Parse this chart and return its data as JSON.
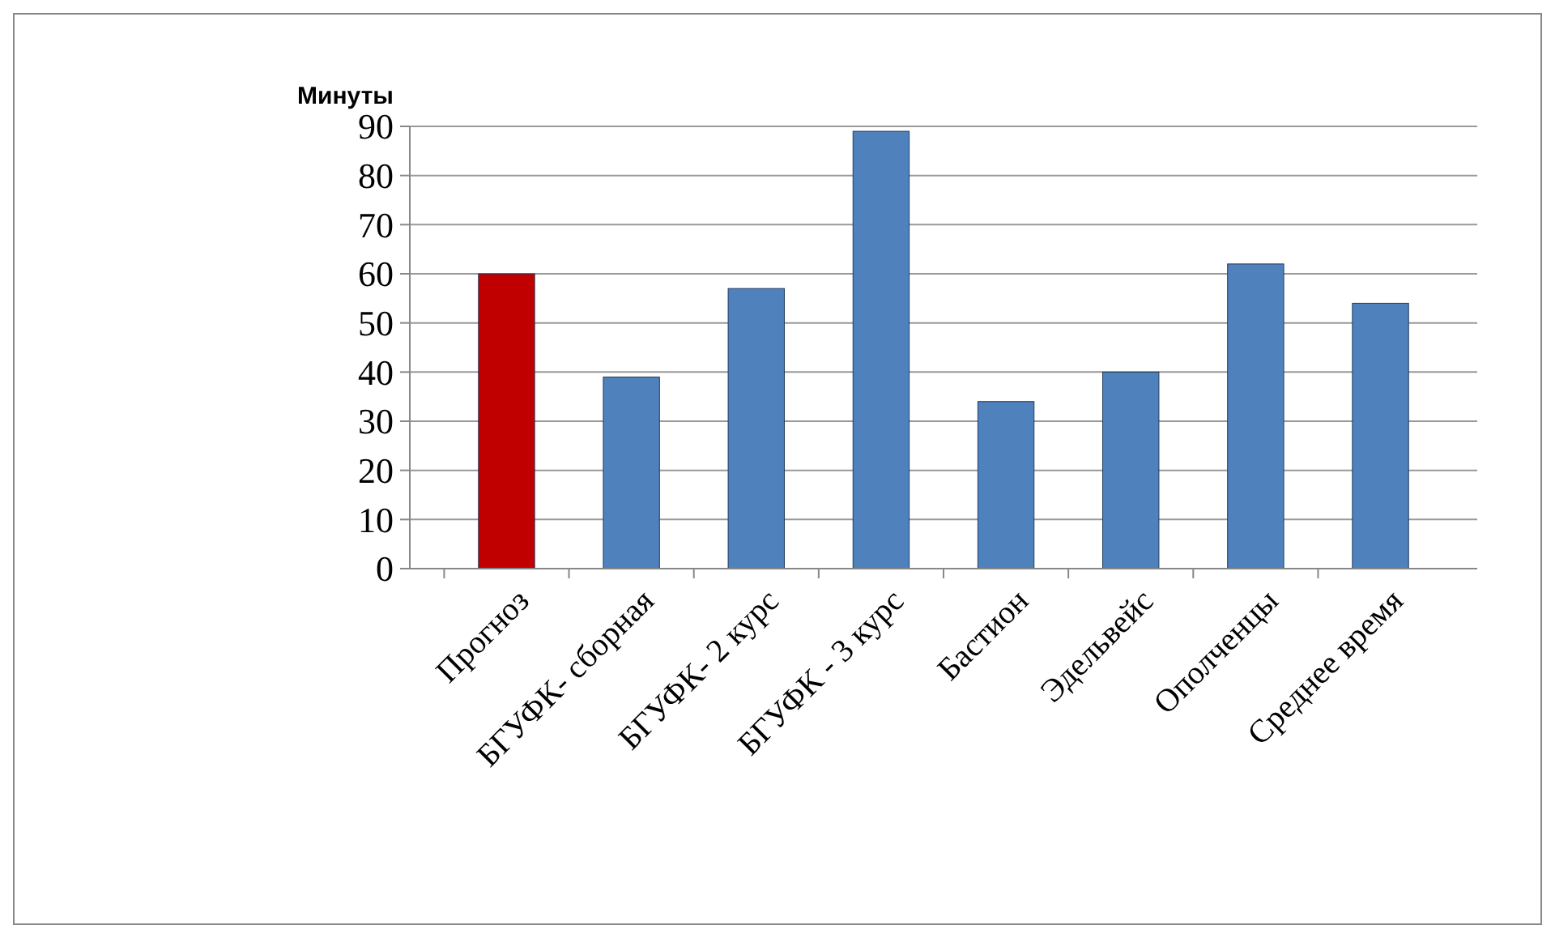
{
  "chart_data": {
    "type": "bar",
    "ylabel": "Минуты",
    "categories": [
      "Прогноз",
      "БГУФК- сборная",
      "БГУФК- 2 курс",
      "БГУФК - 3 курс",
      "Бастион",
      "Эдельвейс",
      "Ополченцы",
      "Среднее время"
    ],
    "values": [
      60,
      39,
      57,
      89,
      34,
      40,
      62,
      54
    ],
    "colors": [
      "#c00000",
      "#4f81bd",
      "#4f81bd",
      "#4f81bd",
      "#4f81bd",
      "#4f81bd",
      "#4f81bd",
      "#4f81bd"
    ],
    "ylim": [
      0,
      90
    ],
    "yticks": [
      0,
      10,
      20,
      30,
      40,
      50,
      60,
      70,
      80,
      90
    ],
    "grid": "y"
  }
}
